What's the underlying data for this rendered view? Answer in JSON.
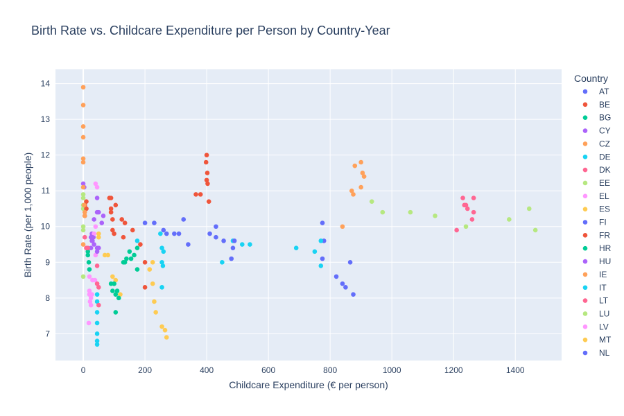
{
  "chart_data": {
    "type": "scatter",
    "title": "Birth Rate vs. Childcare Expenditure per Person by Country-Year",
    "xlabel": "Childcare Expenditure (€ per person)",
    "ylabel": "Birth Rate (per 1,000 people)",
    "xlim": [
      -90,
      1550
    ],
    "ylim": [
      6.25,
      14.4
    ],
    "xticks": [
      0,
      200,
      400,
      600,
      800,
      1000,
      1200,
      1400
    ],
    "yticks": [
      7,
      8,
      9,
      10,
      11,
      12,
      13,
      14
    ],
    "grid": true,
    "legend_title": "Country",
    "legend_position": "right",
    "series": [
      {
        "name": "AT",
        "color": "#636efa",
        "points": [
          [
            295,
            9.8
          ],
          [
            310,
            9.8
          ],
          [
            325,
            10.2
          ],
          [
            340,
            9.5
          ],
          [
            270,
            9.8
          ],
          [
            260,
            9.9
          ]
        ]
      },
      {
        "name": "BE",
        "color": "#EF553B",
        "points": [
          [
            400,
            12.0
          ],
          [
            398,
            11.8
          ],
          [
            402,
            11.5
          ],
          [
            400,
            11.3
          ],
          [
            403,
            11.2
          ],
          [
            407,
            10.7
          ],
          [
            365,
            10.9
          ],
          [
            380,
            10.9
          ]
        ]
      },
      {
        "name": "BG",
        "color": "#00cc96",
        "points": [
          [
            15,
            9.3
          ],
          [
            18,
            9.0
          ],
          [
            20,
            8.8
          ],
          [
            15,
            9.2
          ],
          [
            100,
            8.4
          ],
          [
            105,
            8.1
          ],
          [
            95,
            8.2
          ],
          [
            90,
            8.4
          ]
        ]
      },
      {
        "name": "CY",
        "color": "#ab63fa",
        "points": [
          [
            0,
            11.2
          ],
          [
            3,
            11.1
          ],
          [
            45,
            10.4
          ],
          [
            65,
            10.3
          ],
          [
            35,
            10.2
          ],
          [
            28,
            9.8
          ],
          [
            33,
            9.7
          ],
          [
            30,
            9.6
          ],
          [
            60,
            10.1
          ]
        ]
      },
      {
        "name": "CZ",
        "color": "#FFA15A",
        "points": [
          [
            0,
            13.9
          ],
          [
            0,
            13.4
          ],
          [
            0,
            12.8
          ],
          [
            0,
            12.5
          ],
          [
            0,
            11.9
          ],
          [
            0,
            11.8
          ],
          [
            0,
            11.1
          ],
          [
            870,
            11.0
          ],
          [
            880,
            11.7
          ],
          [
            900,
            11.8
          ],
          [
            905,
            11.5
          ],
          [
            910,
            11.4
          ],
          [
            875,
            10.9
          ],
          [
            900,
            11.1
          ],
          [
            840,
            10.0
          ]
        ]
      },
      {
        "name": "DE",
        "color": "#19d3f3",
        "points": [
          [
            45,
            8.1
          ],
          [
            45,
            7.9
          ],
          [
            45,
            7.6
          ],
          [
            45,
            7.3
          ],
          [
            45,
            7.0
          ],
          [
            45,
            6.8
          ],
          [
            45,
            6.7
          ],
          [
            515,
            9.5
          ],
          [
            540,
            9.5
          ],
          [
            485,
            9.6
          ],
          [
            450,
            9.0
          ]
        ]
      },
      {
        "name": "DK",
        "color": "#FF6692",
        "points": [
          [
            1230,
            10.8
          ],
          [
            1235,
            10.6
          ],
          [
            1240,
            10.6
          ],
          [
            1245,
            10.5
          ],
          [
            1265,
            10.8
          ],
          [
            1265,
            10.4
          ],
          [
            1260,
            10.2
          ],
          [
            1210,
            9.9
          ]
        ]
      },
      {
        "name": "EE",
        "color": "#B6E880",
        "points": [
          [
            0,
            10.9
          ],
          [
            0,
            10.8
          ],
          [
            0,
            10.6
          ],
          [
            0,
            10.5
          ],
          [
            0,
            10.0
          ],
          [
            0,
            9.9
          ],
          [
            0,
            8.6
          ],
          [
            935,
            10.7
          ],
          [
            970,
            10.4
          ],
          [
            1060,
            10.4
          ],
          [
            1140,
            10.3
          ],
          [
            1240,
            10.0
          ],
          [
            1380,
            10.2
          ],
          [
            1445,
            10.5
          ],
          [
            1465,
            9.9
          ]
        ]
      },
      {
        "name": "EL",
        "color": "#FF97FF",
        "points": [
          [
            40,
            11.2
          ],
          [
            45,
            11.1
          ],
          [
            20,
            8.6
          ],
          [
            30,
            8.5
          ],
          [
            38,
            8.5
          ],
          [
            45,
            8.4
          ],
          [
            20,
            8.2
          ],
          [
            28,
            8.1
          ],
          [
            20,
            8.1
          ],
          [
            25,
            8.0
          ],
          [
            22,
            7.9
          ],
          [
            25,
            7.8
          ],
          [
            18,
            7.3
          ],
          [
            40,
            10.0
          ],
          [
            35,
            9.8
          ],
          [
            40,
            9.2
          ]
        ]
      },
      {
        "name": "ES",
        "color": "#FECB52",
        "points": [
          [
            50,
            9.8
          ],
          [
            50,
            9.7
          ],
          [
            70,
            9.2
          ],
          [
            80,
            9.2
          ],
          [
            95,
            8.6
          ],
          [
            105,
            8.5
          ],
          [
            120,
            8.1
          ],
          [
            215,
            8.8
          ],
          [
            225,
            9.0
          ],
          [
            225,
            8.4
          ],
          [
            230,
            7.9
          ],
          [
            235,
            7.6
          ],
          [
            255,
            7.2
          ],
          [
            265,
            7.1
          ],
          [
            270,
            6.9
          ]
        ]
      },
      {
        "name": "FI",
        "color": "#636efa",
        "points": [
          [
            200,
            10.1
          ],
          [
            230,
            10.1
          ],
          [
            430,
            10.0
          ],
          [
            455,
            9.6
          ],
          [
            490,
            9.6
          ],
          [
            410,
            9.8
          ],
          [
            430,
            9.7
          ],
          [
            485,
            9.4
          ],
          [
            480,
            9.1
          ],
          [
            775,
            10.1
          ],
          [
            780,
            9.6
          ],
          [
            775,
            9.1
          ],
          [
            820,
            8.6
          ],
          [
            840,
            8.4
          ],
          [
            850,
            8.3
          ],
          [
            865,
            9.0
          ],
          [
            875,
            8.1
          ]
        ]
      },
      {
        "name": "FR",
        "color": "#EF553B",
        "points": [
          [
            5,
            10.6
          ],
          [
            10,
            10.7
          ],
          [
            10,
            10.5
          ],
          [
            85,
            10.8
          ],
          [
            90,
            10.8
          ],
          [
            90,
            10.5
          ],
          [
            90,
            10.4
          ],
          [
            105,
            10.6
          ],
          [
            95,
            10.2
          ],
          [
            125,
            10.2
          ],
          [
            135,
            10.1
          ],
          [
            95,
            9.9
          ],
          [
            100,
            9.8
          ],
          [
            130,
            9.7
          ],
          [
            160,
            9.9
          ],
          [
            185,
            9.5
          ],
          [
            200,
            9.0
          ],
          [
            200,
            8.3
          ],
          [
            5,
            10.3
          ]
        ]
      },
      {
        "name": "HR",
        "color": "#00cc96",
        "points": [
          [
            150,
            9.3
          ],
          [
            165,
            9.2
          ],
          [
            175,
            9.4
          ],
          [
            140,
            9.1
          ],
          [
            155,
            9.1
          ],
          [
            130,
            9.0
          ],
          [
            135,
            9.0
          ],
          [
            175,
            8.8
          ],
          [
            100,
            8.4
          ],
          [
            110,
            8.2
          ],
          [
            115,
            8.0
          ],
          [
            105,
            7.6
          ]
        ]
      },
      {
        "name": "HU",
        "color": "#ab63fa",
        "points": [
          [
            25,
            9.7
          ],
          [
            28,
            9.6
          ],
          [
            30,
            9.7
          ],
          [
            35,
            9.5
          ],
          [
            45,
            9.4
          ],
          [
            25,
            9.4
          ],
          [
            50,
            9.4
          ],
          [
            45,
            10.8
          ],
          [
            50,
            10.4
          ],
          [
            45,
            9.3
          ]
        ]
      },
      {
        "name": "IE",
        "color": "#FFA15A",
        "points": [
          [
            5,
            10.4
          ],
          [
            5,
            10.3
          ],
          [
            3,
            10.6
          ],
          [
            0,
            9.5
          ]
        ]
      },
      {
        "name": "IT",
        "color": "#19d3f3",
        "points": [
          [
            175,
            9.6
          ],
          [
            250,
            9.8
          ],
          [
            255,
            9.4
          ],
          [
            260,
            9.3
          ],
          [
            255,
            9.0
          ],
          [
            258,
            8.9
          ],
          [
            255,
            8.3
          ],
          [
            690,
            9.4
          ],
          [
            750,
            9.3
          ],
          [
            770,
            9.6
          ],
          [
            770,
            8.9
          ]
        ]
      },
      {
        "name": "LT",
        "color": "#FF6692",
        "points": [
          [
            10,
            9.4
          ],
          [
            5,
            9.7
          ],
          [
            15,
            9.4
          ],
          [
            45,
            8.9
          ],
          [
            45,
            8.4
          ],
          [
            50,
            8.3
          ],
          [
            50,
            7.8
          ]
        ]
      },
      {
        "name": "LU",
        "color": "#B6E880",
        "points": []
      },
      {
        "name": "LV",
        "color": "#FF97FF",
        "points": []
      },
      {
        "name": "MT",
        "color": "#FECB52",
        "points": []
      },
      {
        "name": "NL",
        "color": "#636efa",
        "points": []
      }
    ]
  }
}
